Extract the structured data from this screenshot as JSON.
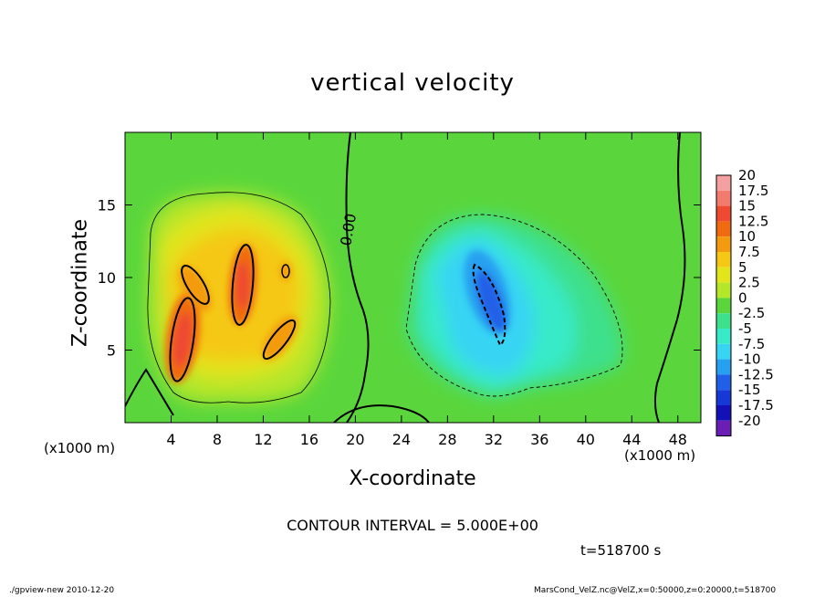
{
  "chart_data": {
    "type": "heatmap",
    "title": "vertical velocity",
    "xlabel": "X-coordinate",
    "ylabel": "Z-coordinate",
    "x_unit_label": "(x1000 m)",
    "y_unit_label": "(x1000 m)",
    "xlim": [
      0,
      50
    ],
    "ylim": [
      0,
      20
    ],
    "x_ticks": [
      4,
      8,
      12,
      16,
      20,
      24,
      28,
      32,
      36,
      40,
      44,
      48
    ],
    "y_ticks": [
      5,
      10,
      15
    ],
    "colorbar": {
      "levels": [
        "20",
        "17.5",
        "15",
        "12.5",
        "10",
        "7.5",
        "5",
        "2.5",
        "0",
        "-2.5",
        "-5",
        "-7.5",
        "-10",
        "-12.5",
        "-15",
        "-17.5",
        "-20"
      ],
      "colors": [
        "#f4a0a0",
        "#f27a6e",
        "#ee4a32",
        "#f06a10",
        "#f39a10",
        "#f5c816",
        "#e2e41c",
        "#b4e62a",
        "#5ad63c",
        "#3ee08c",
        "#38eac8",
        "#38d4f4",
        "#26a0f0",
        "#2060e8",
        "#1638d4",
        "#1410b8",
        "#6a1eb4"
      ]
    },
    "contour_label": "0.00",
    "contour_interval": "CONTOUR INTERVAL = 5.000E+00",
    "grid": false
  },
  "time_label": "t=518700 s",
  "footer": {
    "left": "./gpview-new   2010-12-20",
    "right": "MarsCond_VelZ.nc@VelZ,x=0:50000,z=0:20000,t=518700"
  }
}
